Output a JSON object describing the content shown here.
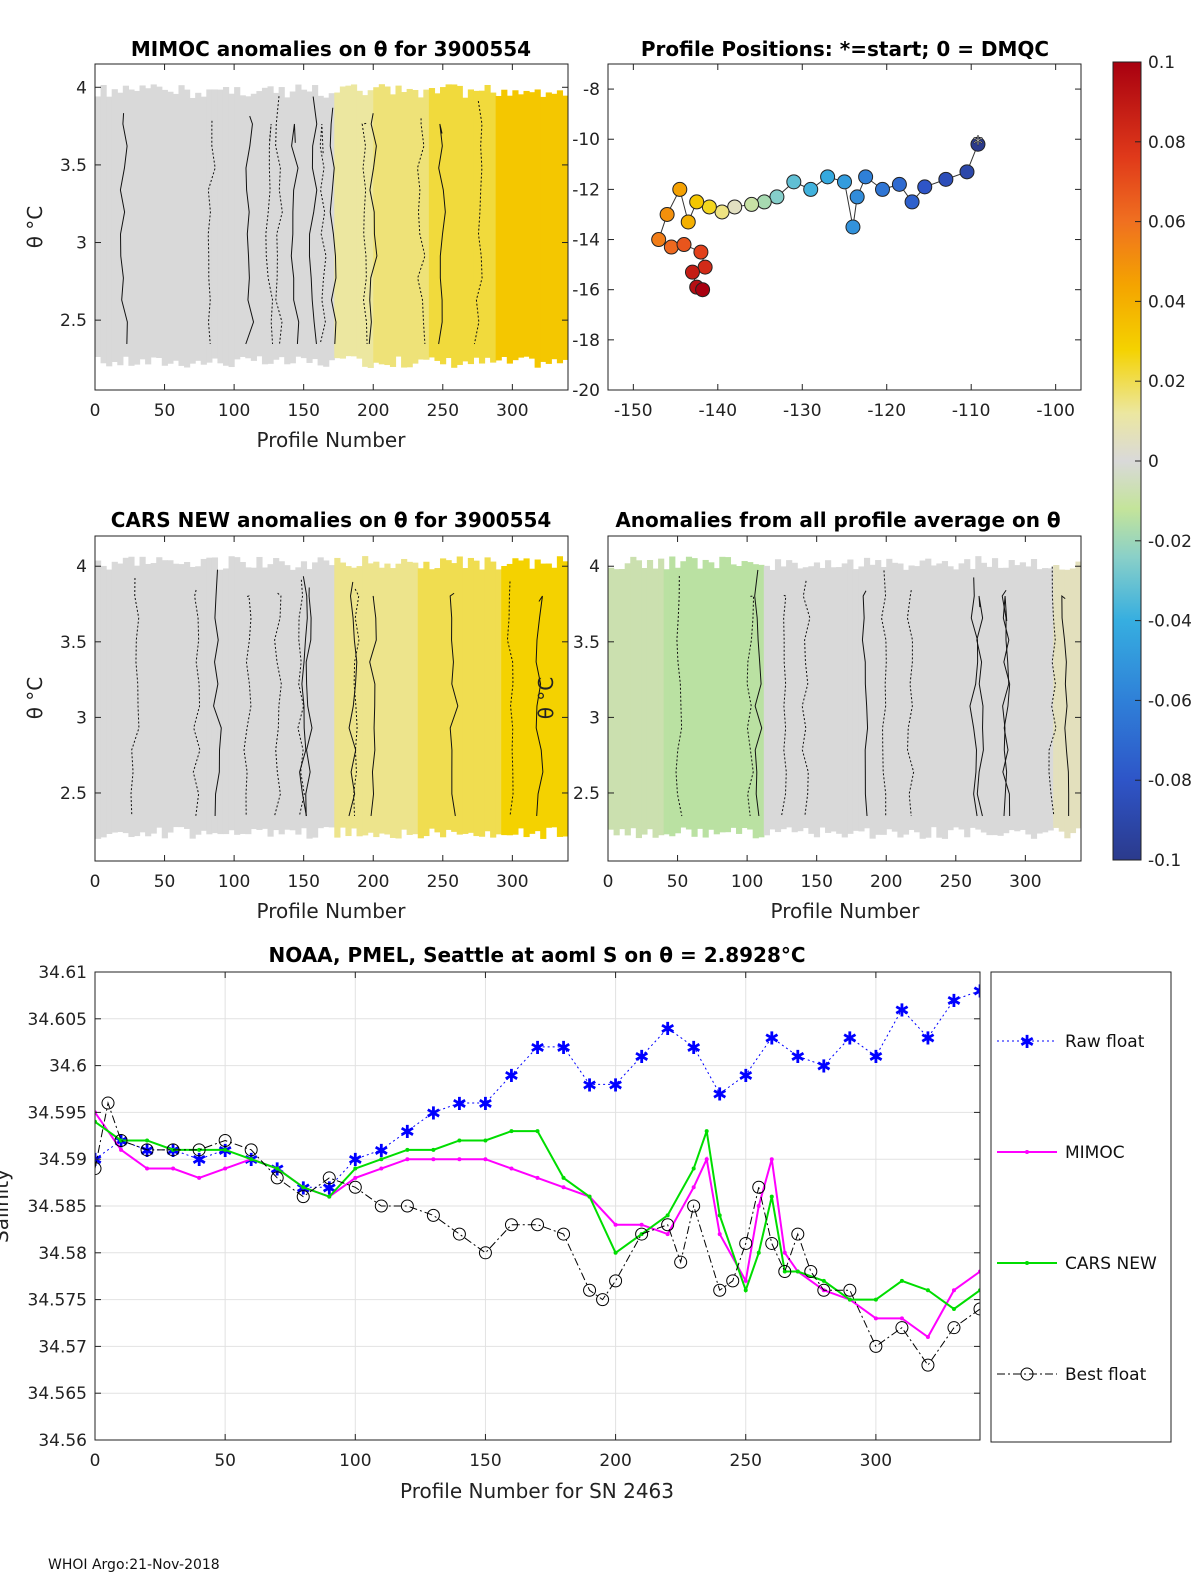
{
  "footer": "WHOI Argo:21-Nov-2018",
  "chart_data": [
    {
      "id": "mimoc",
      "type": "heatmap",
      "title": "MIMOC anomalies on θ  for 3900554",
      "xlabel": "Profile Number",
      "ylabel": "θ °C",
      "xlim": [
        0,
        340
      ],
      "ylim": [
        2.05,
        4.15
      ],
      "xticks": [
        0,
        50,
        100,
        150,
        200,
        250,
        300
      ],
      "yticks": [
        2.5,
        3,
        3.5,
        4
      ],
      "xtick_labels": [
        "0",
        "50",
        "100",
        "150",
        "200",
        "250",
        "300"
      ],
      "ytick_labels": [
        "2.5",
        "3",
        "3.5",
        "4"
      ],
      "anomaly_by_profile": [
        {
          "x": [
            0,
            170
          ],
          "value": 0.0
        },
        {
          "x": [
            170,
            200
          ],
          "value": 0.012
        },
        {
          "x": [
            200,
            240
          ],
          "value": 0.016
        },
        {
          "x": [
            240,
            285
          ],
          "value": 0.022
        },
        {
          "x": [
            285,
            340
          ],
          "value": 0.032
        }
      ]
    },
    {
      "id": "positions",
      "type": "scatter",
      "title": "Profile Positions: *=start; 0 = DMQC",
      "xlim": [
        -153,
        -97
      ],
      "ylim": [
        -20,
        -7
      ],
      "xticks": [
        -150,
        -140,
        -130,
        -120,
        -110,
        -100
      ],
      "yticks": [
        -20,
        -18,
        -16,
        -14,
        -12,
        -10,
        -8
      ],
      "xtick_labels": [
        "-150",
        "-140",
        "-130",
        "-120",
        "-110",
        "-100"
      ],
      "ytick_labels": [
        "-20",
        "-18",
        "-16",
        "-14",
        "-12",
        "-10",
        "-8"
      ],
      "track": [
        {
          "lon": -109.2,
          "lat": -10.2,
          "c": -0.1
        },
        {
          "lon": -110.5,
          "lat": -11.3,
          "c": -0.09
        },
        {
          "lon": -113.0,
          "lat": -11.6,
          "c": -0.085
        },
        {
          "lon": -115.5,
          "lat": -11.9,
          "c": -0.08
        },
        {
          "lon": -117.0,
          "lat": -12.5,
          "c": -0.075
        },
        {
          "lon": -118.5,
          "lat": -11.8,
          "c": -0.07
        },
        {
          "lon": -120.5,
          "lat": -12.0,
          "c": -0.065
        },
        {
          "lon": -122.5,
          "lat": -11.5,
          "c": -0.06
        },
        {
          "lon": -123.5,
          "lat": -12.3,
          "c": -0.055
        },
        {
          "lon": -124.0,
          "lat": -13.5,
          "c": -0.052
        },
        {
          "lon": -125.0,
          "lat": -11.7,
          "c": -0.048
        },
        {
          "lon": -127.0,
          "lat": -11.5,
          "c": -0.042
        },
        {
          "lon": -129.0,
          "lat": -12.0,
          "c": -0.038
        },
        {
          "lon": -131.0,
          "lat": -11.7,
          "c": -0.032
        },
        {
          "lon": -133.0,
          "lat": -12.3,
          "c": -0.025
        },
        {
          "lon": -134.5,
          "lat": -12.5,
          "c": -0.018
        },
        {
          "lon": -136.0,
          "lat": -12.6,
          "c": -0.01
        },
        {
          "lon": -138.0,
          "lat": -12.7,
          "c": 0.005
        },
        {
          "lon": -139.5,
          "lat": -12.9,
          "c": 0.015
        },
        {
          "lon": -141.0,
          "lat": -12.7,
          "c": 0.025
        },
        {
          "lon": -142.5,
          "lat": -12.5,
          "c": 0.032
        },
        {
          "lon": -143.5,
          "lat": -13.3,
          "c": 0.04
        },
        {
          "lon": -144.5,
          "lat": -12.0,
          "c": 0.045
        },
        {
          "lon": -146.0,
          "lat": -13.0,
          "c": 0.05
        },
        {
          "lon": -147.0,
          "lat": -14.0,
          "c": 0.056
        },
        {
          "lon": -145.5,
          "lat": -14.3,
          "c": 0.062
        },
        {
          "lon": -144.0,
          "lat": -14.2,
          "c": 0.068
        },
        {
          "lon": -142.0,
          "lat": -14.5,
          "c": 0.074
        },
        {
          "lon": -141.5,
          "lat": -15.1,
          "c": 0.082
        },
        {
          "lon": -143.0,
          "lat": -15.3,
          "c": 0.088
        },
        {
          "lon": -142.5,
          "lat": -15.9,
          "c": 0.094
        },
        {
          "lon": -141.8,
          "lat": -16.0,
          "c": 0.1
        }
      ],
      "colorbar": {
        "ticks": [
          -0.1,
          -0.08,
          -0.06,
          -0.04,
          -0.02,
          0,
          0.02,
          0.04,
          0.06,
          0.08,
          0.1
        ],
        "tick_labels": [
          "-0.1",
          "-0.08",
          "-0.06",
          "-0.04",
          "-0.02",
          "0",
          "0.02",
          "0.04",
          "0.06",
          "0.08",
          "0.1"
        ]
      }
    },
    {
      "id": "cars",
      "type": "heatmap",
      "title": "CARS NEW anomalies on θ for 3900554",
      "xlabel": "Profile Number",
      "ylabel": "θ °C",
      "xlim": [
        0,
        340
      ],
      "ylim": [
        2.05,
        4.2
      ],
      "xticks": [
        0,
        50,
        100,
        150,
        200,
        250,
        300
      ],
      "yticks": [
        2.5,
        3,
        3.5,
        4
      ],
      "xtick_labels": [
        "0",
        "50",
        "100",
        "150",
        "200",
        "250",
        "300"
      ],
      "ytick_labels": [
        "2.5",
        "3",
        "3.5",
        "4"
      ],
      "anomaly_by_profile": [
        {
          "x": [
            0,
            170
          ],
          "value": 0.0
        },
        {
          "x": [
            170,
            230
          ],
          "value": 0.014
        },
        {
          "x": [
            230,
            290
          ],
          "value": 0.02
        },
        {
          "x": [
            290,
            340
          ],
          "value": 0.028
        }
      ]
    },
    {
      "id": "allavg",
      "type": "heatmap",
      "title": "Anomalies from all profile average on θ",
      "xlabel": "Profile Number",
      "ylabel": "θ °C",
      "xlim": [
        0,
        340
      ],
      "ylim": [
        2.05,
        4.2
      ],
      "xticks": [
        0,
        50,
        100,
        150,
        200,
        250,
        300
      ],
      "yticks": [
        2.5,
        3,
        3.5,
        4
      ],
      "xtick_labels": [
        "0",
        "50",
        "100",
        "150",
        "200",
        "250",
        "300"
      ],
      "ytick_labels": [
        "2.5",
        "3",
        "3.5",
        "4"
      ],
      "anomaly_by_profile": [
        {
          "x": [
            0,
            40
          ],
          "value": -0.008
        },
        {
          "x": [
            40,
            110
          ],
          "value": -0.014
        },
        {
          "x": [
            110,
            320
          ],
          "value": 0.0
        },
        {
          "x": [
            320,
            340
          ],
          "value": 0.006
        }
      ]
    },
    {
      "id": "salinity",
      "type": "line",
      "title": "NOAA, PMEL, Seattle at aoml S on θ = 2.8928°C",
      "xlabel": "Profile Number for SN 2463",
      "ylabel": "Salinity",
      "xlim": [
        0,
        340
      ],
      "ylim": [
        34.56,
        34.61
      ],
      "xticks": [
        0,
        50,
        100,
        150,
        200,
        250,
        300
      ],
      "yticks": [
        34.56,
        34.565,
        34.57,
        34.575,
        34.58,
        34.585,
        34.59,
        34.595,
        34.6,
        34.605,
        34.61
      ],
      "xtick_labels": [
        "0",
        "50",
        "100",
        "150",
        "200",
        "250",
        "300"
      ],
      "ytick_labels": [
        "34.56",
        "34.565",
        "34.57",
        "34.575",
        "34.58",
        "34.585",
        "34.59",
        "34.595",
        "34.6",
        "34.605",
        "34.61"
      ],
      "grid": true,
      "legend_position": "right",
      "series": [
        {
          "name": "Raw float",
          "color": "#0000ff",
          "marker": "star",
          "x": [
            0,
            10,
            20,
            30,
            40,
            50,
            60,
            70,
            80,
            90,
            100,
            110,
            120,
            130,
            140,
            150,
            160,
            170,
            180,
            190,
            200,
            210,
            220,
            230,
            240,
            250,
            260,
            270,
            280,
            290,
            300,
            310,
            320,
            330,
            340
          ],
          "y": [
            34.59,
            34.592,
            34.591,
            34.591,
            34.59,
            34.591,
            34.59,
            34.589,
            34.587,
            34.587,
            34.59,
            34.591,
            34.593,
            34.595,
            34.596,
            34.596,
            34.599,
            34.602,
            34.602,
            34.598,
            34.598,
            34.601,
            34.604,
            34.602,
            34.597,
            34.599,
            34.603,
            34.601,
            34.6,
            34.603,
            34.601,
            34.606,
            34.603,
            34.607,
            34.608
          ]
        },
        {
          "name": "MIMOC",
          "color": "#ff00ff",
          "marker": "dot",
          "x": [
            0,
            10,
            20,
            30,
            40,
            50,
            60,
            70,
            80,
            90,
            100,
            110,
            120,
            130,
            140,
            150,
            160,
            170,
            180,
            190,
            200,
            210,
            220,
            230,
            235,
            240,
            250,
            255,
            260,
            265,
            270,
            280,
            290,
            300,
            310,
            320,
            330,
            340
          ],
          "y": [
            34.595,
            34.591,
            34.589,
            34.589,
            34.588,
            34.589,
            34.59,
            34.589,
            34.587,
            34.586,
            34.588,
            34.589,
            34.59,
            34.59,
            34.59,
            34.59,
            34.589,
            34.588,
            34.587,
            34.586,
            34.583,
            34.583,
            34.582,
            34.587,
            34.59,
            34.582,
            34.577,
            34.585,
            34.59,
            34.58,
            34.578,
            34.576,
            34.575,
            34.573,
            34.573,
            34.571,
            34.576,
            34.578
          ]
        },
        {
          "name": "CARS NEW",
          "color": "#00dd00",
          "marker": "dot",
          "x": [
            0,
            10,
            20,
            30,
            40,
            50,
            60,
            70,
            80,
            90,
            100,
            110,
            120,
            130,
            140,
            150,
            160,
            170,
            180,
            190,
            200,
            210,
            220,
            230,
            235,
            240,
            250,
            255,
            260,
            265,
            270,
            280,
            290,
            300,
            310,
            320,
            330,
            340
          ],
          "y": [
            34.594,
            34.592,
            34.592,
            34.591,
            34.591,
            34.591,
            34.59,
            34.589,
            34.587,
            34.586,
            34.589,
            34.59,
            34.591,
            34.591,
            34.592,
            34.592,
            34.593,
            34.593,
            34.588,
            34.586,
            34.58,
            34.582,
            34.584,
            34.589,
            34.593,
            34.584,
            34.576,
            34.58,
            34.586,
            34.578,
            34.578,
            34.577,
            34.575,
            34.575,
            34.577,
            34.576,
            34.574,
            34.576
          ]
        },
        {
          "name": "Best float",
          "color": "#000000",
          "marker": "circle",
          "x": [
            0,
            5,
            10,
            20,
            30,
            40,
            50,
            60,
            70,
            80,
            90,
            100,
            110,
            120,
            130,
            140,
            150,
            160,
            170,
            180,
            190,
            195,
            200,
            210,
            220,
            225,
            230,
            240,
            245,
            250,
            255,
            260,
            265,
            270,
            275,
            280,
            290,
            300,
            310,
            320,
            330,
            340
          ],
          "y": [
            34.589,
            34.596,
            34.592,
            34.591,
            34.591,
            34.591,
            34.592,
            34.591,
            34.588,
            34.586,
            34.588,
            34.587,
            34.585,
            34.585,
            34.584,
            34.582,
            34.58,
            34.583,
            34.583,
            34.582,
            34.576,
            34.575,
            34.577,
            34.582,
            34.583,
            34.579,
            34.585,
            34.576,
            34.577,
            34.581,
            34.587,
            34.581,
            34.578,
            34.582,
            34.578,
            34.576,
            34.576,
            34.57,
            34.572,
            34.568,
            34.572,
            34.574
          ]
        }
      ]
    }
  ]
}
